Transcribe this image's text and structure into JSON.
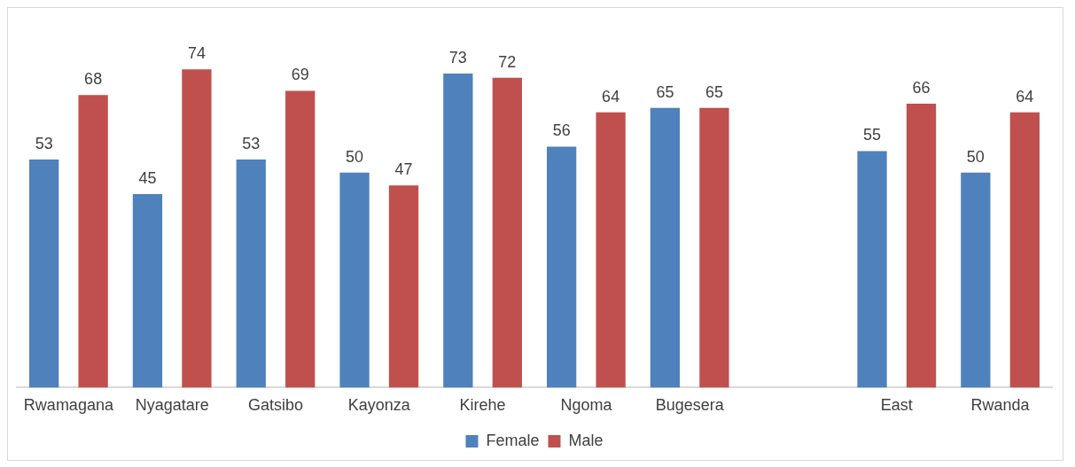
{
  "chart_data": {
    "type": "bar",
    "categories": [
      "Rwamagana",
      "Nyagatare",
      "Gatsibo",
      "Kayonza",
      "Kirehe",
      "Ngoma",
      "Bugesera",
      null,
      "East",
      "Rwanda"
    ],
    "series": [
      {
        "name": "Female",
        "color": "#4f81bd",
        "values": [
          53,
          45,
          53,
          50,
          73,
          56,
          65,
          null,
          55,
          50
        ]
      },
      {
        "name": "Male",
        "color": "#c0504d",
        "values": [
          68,
          74,
          69,
          47,
          72,
          64,
          65,
          null,
          66,
          64
        ]
      }
    ],
    "data_labels": true,
    "legend": "bottom",
    "grid": false
  }
}
